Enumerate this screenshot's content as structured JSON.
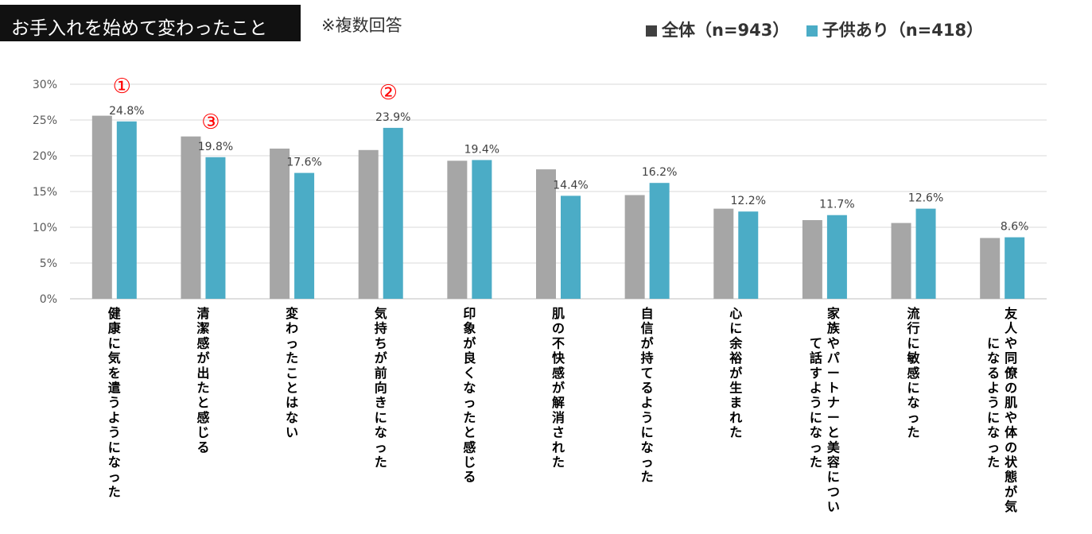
{
  "header": {
    "title": "お手入れを始めて変わったこと",
    "note": "※複数回答"
  },
  "chart_data": {
    "type": "bar",
    "title": "お手入れを始めて変わったこと",
    "xlabel": "",
    "ylabel": "",
    "ylim": [
      0,
      30
    ],
    "y_ticks": [
      "0%",
      "5%",
      "10%",
      "15%",
      "20%",
      "25%",
      "30%"
    ],
    "grid": true,
    "legend_position": "top-right",
    "categories": [
      [
        "健康に気を遣うようになった"
      ],
      [
        "清潔感が出たと感じる"
      ],
      [
        "変わったことはない"
      ],
      [
        "気持ちが前向きになった"
      ],
      [
        "印象が良くなったと感じる"
      ],
      [
        "肌の不快感が解消された"
      ],
      [
        "自信が持てるようになった"
      ],
      [
        "心に余裕が生まれた"
      ],
      [
        "家族やパートナーと美容につい",
        "て話すようになった"
      ],
      [
        "流行に敏感になった"
      ],
      [
        "友人や同僚の肌や体の状態が気",
        "になるようになった"
      ]
    ],
    "series": [
      {
        "name": "全体（n=943）",
        "color": "#a6a6a6",
        "values": [
          25.6,
          22.7,
          21.0,
          20.8,
          19.3,
          18.1,
          14.5,
          12.6,
          11.0,
          10.6,
          8.5
        ],
        "show_labels": false
      },
      {
        "name": "子供あり（n=418）",
        "color": "#4bacc6",
        "values": [
          24.8,
          19.8,
          17.6,
          23.9,
          19.4,
          14.4,
          16.2,
          12.2,
          11.7,
          12.6,
          8.6
        ],
        "data_labels": [
          "24.8%",
          "19.8%",
          "17.6%",
          "23.9%",
          "19.4%",
          "14.4%",
          "16.2%",
          "12.2%",
          "11.7%",
          "12.6%",
          "8.6%"
        ],
        "show_labels": true
      }
    ],
    "annotations": [
      {
        "text": "①",
        "category_index": 0,
        "color": "#ff0000"
      },
      {
        "text": "②",
        "category_index": 3,
        "color": "#ff0000"
      },
      {
        "text": "③",
        "category_index": 1,
        "color": "#ff0000"
      }
    ]
  }
}
